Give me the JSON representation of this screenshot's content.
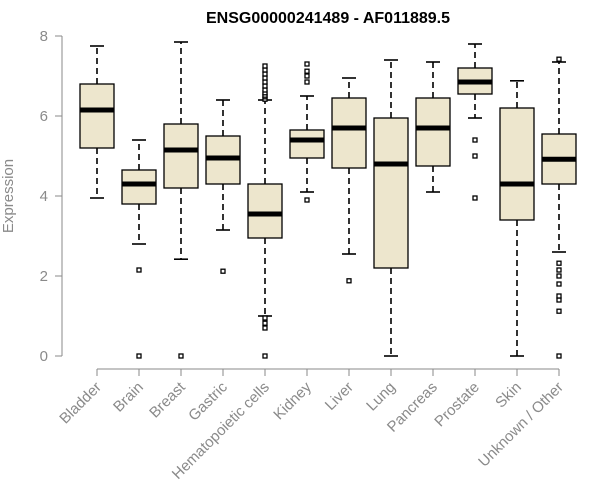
{
  "chart_data": {
    "type": "boxplot",
    "title": "ENSG00000241489 - AF011889.5",
    "xlabel": "",
    "ylabel": "Expression",
    "ylim": [
      0,
      8
    ],
    "yticks": [
      0,
      2,
      4,
      6,
      8
    ],
    "colors": {
      "box_fill": "#ede6cd",
      "stroke": "#000000",
      "axis": "#8a8a8a"
    },
    "categories": [
      "Bladder",
      "Brain",
      "Breast",
      "Gastric",
      "Hematopoietic cells",
      "Kidney",
      "Liver",
      "Lung",
      "Pancreas",
      "Prostate",
      "Skin",
      "Unknown / Other"
    ],
    "boxes": [
      {
        "category": "Bladder",
        "whisker_low": 3.95,
        "q1": 5.2,
        "median": 6.15,
        "q3": 6.8,
        "whisker_high": 7.75,
        "outliers": []
      },
      {
        "category": "Brain",
        "whisker_low": 2.8,
        "q1": 3.8,
        "median": 4.3,
        "q3": 4.65,
        "whisker_high": 5.4,
        "outliers": [
          2.15,
          0.0
        ]
      },
      {
        "category": "Breast",
        "whisker_low": 2.42,
        "q1": 4.2,
        "median": 5.15,
        "q3": 5.8,
        "whisker_high": 7.85,
        "outliers": [
          0.0
        ]
      },
      {
        "category": "Gastric",
        "whisker_low": 3.15,
        "q1": 4.3,
        "median": 4.95,
        "q3": 5.5,
        "whisker_high": 6.4,
        "outliers": [
          2.12
        ]
      },
      {
        "category": "Hematopoietic cells",
        "whisker_low": 1.0,
        "q1": 2.95,
        "median": 3.55,
        "q3": 4.3,
        "whisker_high": 6.4,
        "outliers": [
          0.0,
          0.7,
          0.82,
          0.95,
          6.42,
          6.48,
          6.52,
          6.58,
          6.65,
          6.75,
          6.85,
          6.95,
          7.05,
          7.15,
          7.25
        ]
      },
      {
        "category": "Kidney",
        "whisker_low": 4.1,
        "q1": 4.95,
        "median": 5.4,
        "q3": 5.65,
        "whisker_high": 6.5,
        "outliers": [
          3.9,
          6.85,
          7.0,
          7.12,
          7.3
        ]
      },
      {
        "category": "Liver",
        "whisker_low": 2.55,
        "q1": 4.7,
        "median": 5.7,
        "q3": 6.45,
        "whisker_high": 6.95,
        "outliers": [
          1.88
        ]
      },
      {
        "category": "Lung",
        "whisker_low": 0.0,
        "q1": 2.2,
        "median": 4.8,
        "q3": 5.95,
        "whisker_high": 7.4,
        "outliers": []
      },
      {
        "category": "Pancreas",
        "whisker_low": 4.1,
        "q1": 4.75,
        "median": 5.7,
        "q3": 6.45,
        "whisker_high": 7.35,
        "outliers": []
      },
      {
        "category": "Prostate",
        "whisker_low": 5.95,
        "q1": 6.55,
        "median": 6.85,
        "q3": 7.2,
        "whisker_high": 7.8,
        "outliers": [
          5.4,
          5.0,
          3.95
        ]
      },
      {
        "category": "Skin",
        "whisker_low": 0.0,
        "q1": 3.4,
        "median": 4.3,
        "q3": 6.2,
        "whisker_high": 6.88,
        "outliers": []
      },
      {
        "category": "Unknown / Other",
        "whisker_low": 2.6,
        "q1": 4.3,
        "median": 4.92,
        "q3": 5.55,
        "whisker_high": 7.35,
        "outliers": [
          7.42,
          0.0,
          1.12,
          1.4,
          1.5,
          1.8,
          2.0,
          2.15,
          2.32
        ]
      }
    ]
  }
}
